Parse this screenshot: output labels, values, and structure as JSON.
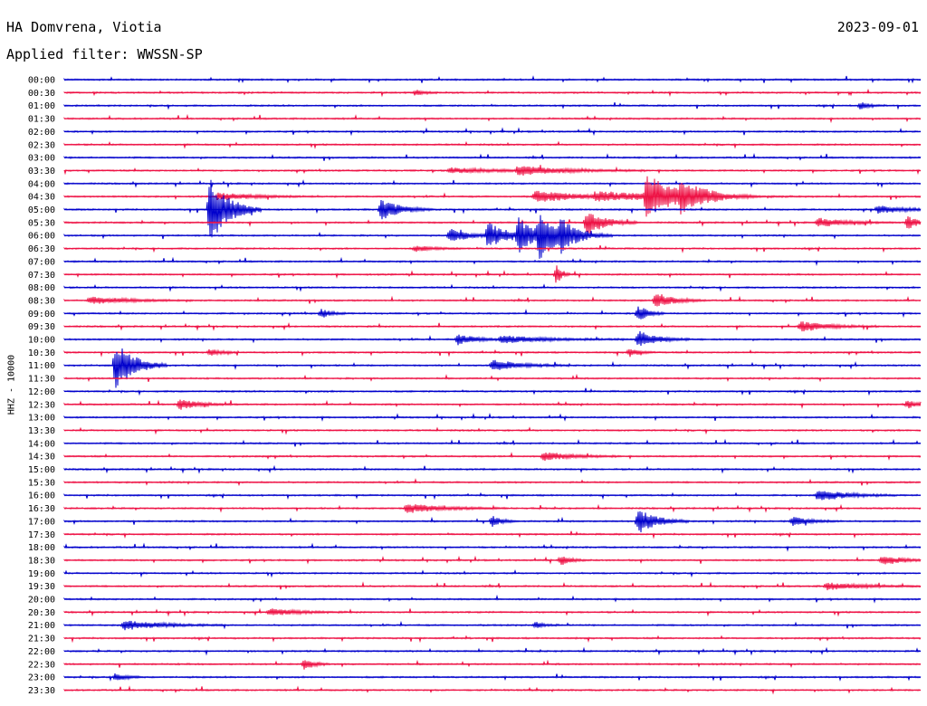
{
  "header": {
    "station": "HA Domvrena, Viotia",
    "date": "2023-09-01",
    "filter": "Applied filter: WWSSN-SP"
  },
  "chart_data": {
    "type": "line",
    "ylabel": "HHZ - 10000",
    "colors": {
      "even": "#0000cc",
      "odd": "#ee1144"
    },
    "rows": [
      "00:00",
      "00:30",
      "01:00",
      "01:30",
      "02:00",
      "02:30",
      "03:00",
      "03:30",
      "04:00",
      "04:30",
      "05:00",
      "05:30",
      "06:00",
      "06:30",
      "07:00",
      "07:30",
      "08:00",
      "08:30",
      "09:00",
      "09:30",
      "10:00",
      "10:30",
      "11:00",
      "11:30",
      "12:00",
      "12:30",
      "13:00",
      "13:30",
      "14:00",
      "14:30",
      "15:00",
      "15:30",
      "16:00",
      "16:30",
      "17:00",
      "17:30",
      "18:00",
      "18:30",
      "19:00",
      "19:30",
      "20:00",
      "20:30",
      "21:00",
      "21:30",
      "22:00",
      "22:30",
      "23:00",
      "23:30"
    ],
    "events": [
      {
        "row": 1,
        "t": 0.41,
        "amp": 3,
        "dur": 0.01
      },
      {
        "row": 2,
        "t": 0.93,
        "amp": 4,
        "dur": 0.01
      },
      {
        "row": 7,
        "t": 0.53,
        "amp": 5,
        "dur": 0.05
      },
      {
        "row": 7,
        "t": 0.45,
        "amp": 3,
        "dur": 0.05
      },
      {
        "row": 9,
        "t": 0.18,
        "amp": 4,
        "dur": 0.04
      },
      {
        "row": 9,
        "t": 0.55,
        "amp": 6,
        "dur": 0.06
      },
      {
        "row": 9,
        "t": 0.68,
        "amp": 24,
        "dur": 0.03
      },
      {
        "row": 9,
        "t": 0.72,
        "amp": 12,
        "dur": 0.03
      },
      {
        "row": 9,
        "t": 0.62,
        "amp": 4,
        "dur": 0.08
      },
      {
        "row": 10,
        "t": 0.17,
        "amp": 38,
        "dur": 0.02
      },
      {
        "row": 10,
        "t": 0.37,
        "amp": 12,
        "dur": 0.02
      },
      {
        "row": 10,
        "t": 0.95,
        "amp": 4,
        "dur": 0.03
      },
      {
        "row": 11,
        "t": 0.61,
        "amp": 14,
        "dur": 0.02
      },
      {
        "row": 11,
        "t": 0.88,
        "amp": 5,
        "dur": 0.03
      },
      {
        "row": 11,
        "t": 0.985,
        "amp": 8,
        "dur": 0.01
      },
      {
        "row": 12,
        "t": 0.45,
        "amp": 8,
        "dur": 0.02
      },
      {
        "row": 12,
        "t": 0.495,
        "amp": 14,
        "dur": 0.02
      },
      {
        "row": 12,
        "t": 0.53,
        "amp": 18,
        "dur": 0.02
      },
      {
        "row": 12,
        "t": 0.555,
        "amp": 24,
        "dur": 0.02
      },
      {
        "row": 12,
        "t": 0.58,
        "amp": 14,
        "dur": 0.02
      },
      {
        "row": 13,
        "t": 0.41,
        "amp": 3,
        "dur": 0.02
      },
      {
        "row": 15,
        "t": 0.575,
        "amp": 12,
        "dur": 0.005
      },
      {
        "row": 17,
        "t": 0.69,
        "amp": 8,
        "dur": 0.02
      },
      {
        "row": 17,
        "t": 0.03,
        "amp": 4,
        "dur": 0.04
      },
      {
        "row": 18,
        "t": 0.3,
        "amp": 5,
        "dur": 0.01
      },
      {
        "row": 18,
        "t": 0.67,
        "amp": 10,
        "dur": 0.01
      },
      {
        "row": 19,
        "t": 0.86,
        "amp": 6,
        "dur": 0.03
      },
      {
        "row": 20,
        "t": 0.46,
        "amp": 6,
        "dur": 0.02
      },
      {
        "row": 20,
        "t": 0.51,
        "amp": 4,
        "dur": 0.05
      },
      {
        "row": 20,
        "t": 0.67,
        "amp": 10,
        "dur": 0.02
      },
      {
        "row": 21,
        "t": 0.17,
        "amp": 4,
        "dur": 0.01
      },
      {
        "row": 21,
        "t": 0.66,
        "amp": 5,
        "dur": 0.01
      },
      {
        "row": 22,
        "t": 0.06,
        "amp": 28,
        "dur": 0.02
      },
      {
        "row": 22,
        "t": 0.5,
        "amp": 6,
        "dur": 0.03
      },
      {
        "row": 25,
        "t": 0.135,
        "amp": 6,
        "dur": 0.02
      },
      {
        "row": 25,
        "t": 0.985,
        "amp": 5,
        "dur": 0.01
      },
      {
        "row": 29,
        "t": 0.56,
        "amp": 5,
        "dur": 0.03
      },
      {
        "row": 32,
        "t": 0.88,
        "amp": 6,
        "dur": 0.03
      },
      {
        "row": 33,
        "t": 0.4,
        "amp": 5,
        "dur": 0.04
      },
      {
        "row": 34,
        "t": 0.5,
        "amp": 6,
        "dur": 0.01
      },
      {
        "row": 34,
        "t": 0.67,
        "amp": 14,
        "dur": 0.02
      },
      {
        "row": 34,
        "t": 0.85,
        "amp": 5,
        "dur": 0.02
      },
      {
        "row": 37,
        "t": 0.58,
        "amp": 6,
        "dur": 0.01
      },
      {
        "row": 37,
        "t": 0.955,
        "amp": 6,
        "dur": 0.02
      },
      {
        "row": 39,
        "t": 0.89,
        "amp": 4,
        "dur": 0.04
      },
      {
        "row": 41,
        "t": 0.24,
        "amp": 4,
        "dur": 0.03
      },
      {
        "row": 42,
        "t": 0.07,
        "amp": 5,
        "dur": 0.04
      },
      {
        "row": 42,
        "t": 0.55,
        "amp": 4,
        "dur": 0.01
      },
      {
        "row": 45,
        "t": 0.28,
        "amp": 7,
        "dur": 0.01
      },
      {
        "row": 46,
        "t": 0.06,
        "amp": 5,
        "dur": 0.01
      }
    ]
  }
}
